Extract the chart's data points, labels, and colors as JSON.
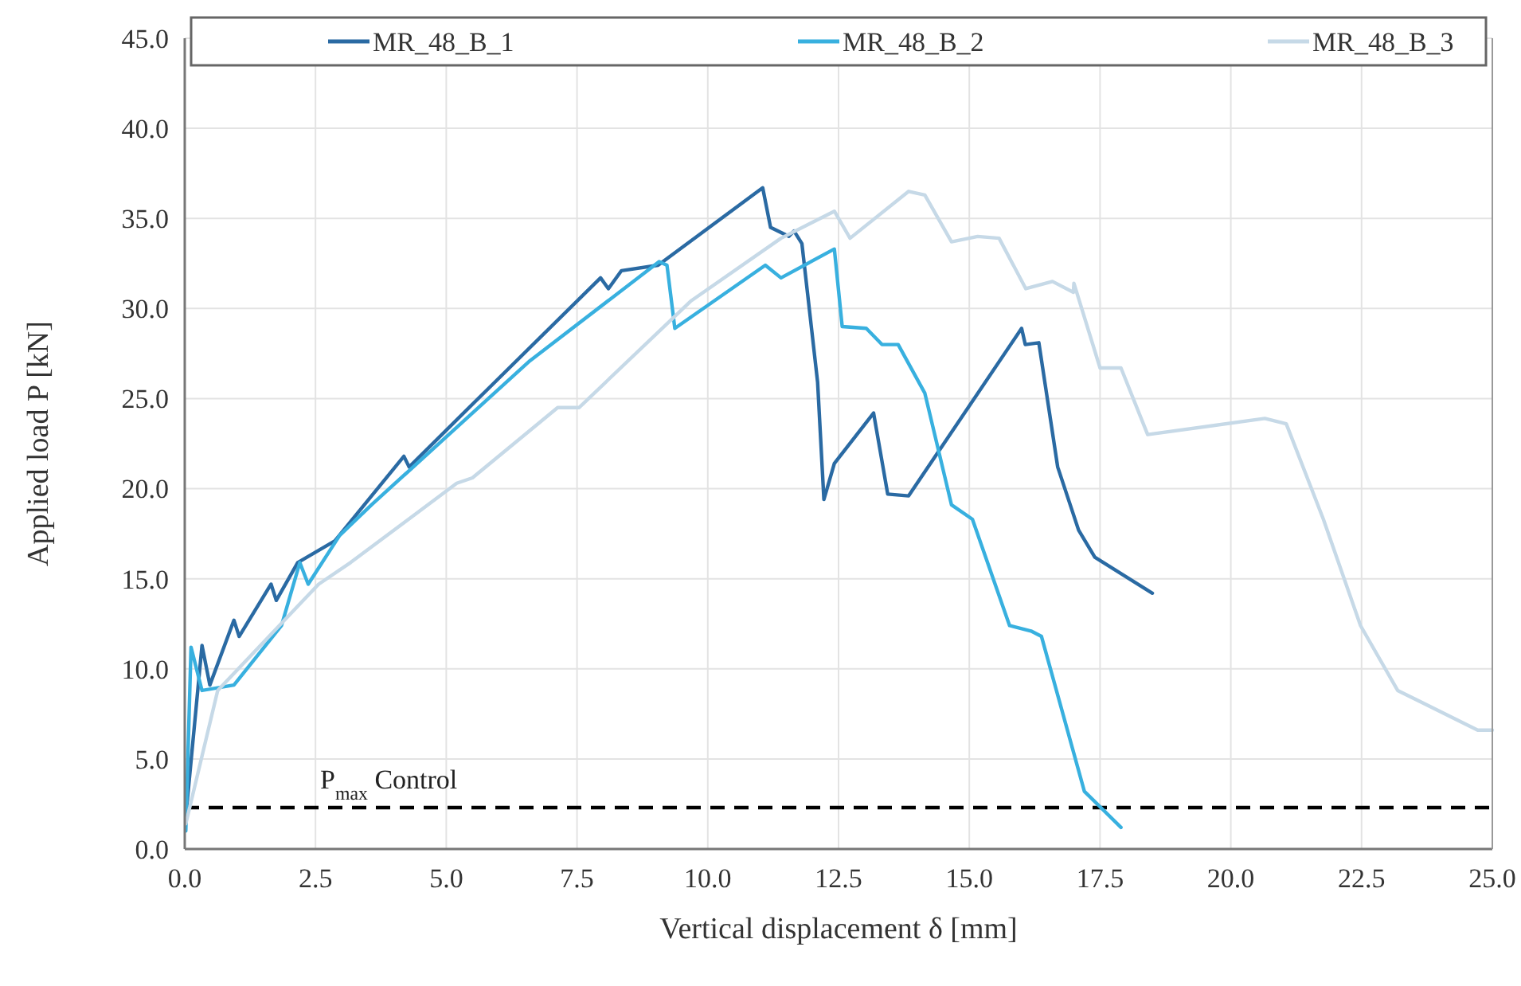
{
  "chart_data": {
    "type": "line",
    "xlabel": "Vertical displacement δ [mm]",
    "ylabel": "Applied load P [kN]",
    "xlim": [
      0,
      25
    ],
    "xticks": [
      {
        "value": 0,
        "label": "0.0"
      },
      {
        "value": 2.5,
        "label": "2.5"
      },
      {
        "value": 5,
        "label": "5.0"
      },
      {
        "value": 7.5,
        "label": "7.5"
      },
      {
        "value": 10,
        "label": "10.0"
      },
      {
        "value": 12.5,
        "label": "12.5"
      },
      {
        "value": 15,
        "label": "15.0"
      },
      {
        "value": 17.5,
        "label": "17.5"
      },
      {
        "value": 20,
        "label": "20.0"
      },
      {
        "value": 22.5,
        "label": "22.5"
      },
      {
        "value": 25,
        "label": "25.0"
      }
    ],
    "ylim": [
      0,
      45
    ],
    "yticks": [
      {
        "value": 0,
        "label": "0.0"
      },
      {
        "value": 5,
        "label": "5.0"
      },
      {
        "value": 10,
        "label": "10.0"
      },
      {
        "value": 15,
        "label": "15.0"
      },
      {
        "value": 20,
        "label": "20.0"
      },
      {
        "value": 25,
        "label": "25.0"
      },
      {
        "value": 30,
        "label": "30.0"
      },
      {
        "value": 35,
        "label": "35.0"
      },
      {
        "value": 40,
        "label": "40.0"
      },
      {
        "value": 45,
        "label": "45.0"
      }
    ],
    "grid": true,
    "legend": "top",
    "marker": "none",
    "line_style": "solid",
    "ref_lines": [
      {
        "axis": "y",
        "value": 2.3,
        "label": "P$_{max}$ Control",
        "color": "#000000",
        "line_style": "dashed"
      }
    ],
    "series": [
      {
        "name": "MR_48_B_1",
        "color": "#2a6aa3",
        "x": [
          0.02,
          0.33,
          0.48,
          0.94,
          1.04,
          1.65,
          1.75,
          2.16,
          2.87,
          4.19,
          4.29,
          5.61,
          7.95,
          8.1,
          8.35,
          9.05,
          11.05,
          11.2,
          11.55,
          11.65,
          11.8,
          12.1,
          12.22,
          12.42,
          13.17,
          13.44,
          13.84,
          16.0,
          16.07,
          16.33,
          16.69,
          17.09,
          17.4,
          18.5
        ],
        "values": [
          1.8,
          11.3,
          9.1,
          12.7,
          11.8,
          14.7,
          13.8,
          15.9,
          17.1,
          21.8,
          21.2,
          25.0,
          31.7,
          31.1,
          32.1,
          32.4,
          36.7,
          34.5,
          34.0,
          34.3,
          33.6,
          25.9,
          19.4,
          21.4,
          24.2,
          19.7,
          19.6,
          28.9,
          28.0,
          28.1,
          21.2,
          17.7,
          16.2,
          14.2
        ]
      },
      {
        "name": "MR_48_B_2",
        "color": "#38b0df",
        "x": [
          0.02,
          0.12,
          0.33,
          0.94,
          1.85,
          2.2,
          2.36,
          2.96,
          3.57,
          6.6,
          9.07,
          9.22,
          9.37,
          11.1,
          11.4,
          12.42,
          12.57,
          13.03,
          13.33,
          13.64,
          14.15,
          14.66,
          15.06,
          15.77,
          16.18,
          16.38,
          17.2,
          17.9
        ],
        "values": [
          1.0,
          11.2,
          8.8,
          9.1,
          12.4,
          15.9,
          14.7,
          17.4,
          19.1,
          27.1,
          32.6,
          32.4,
          28.9,
          32.4,
          31.7,
          33.3,
          29.0,
          28.9,
          28.0,
          28.0,
          25.3,
          19.1,
          18.3,
          12.4,
          12.1,
          11.8,
          3.2,
          1.2
        ]
      },
      {
        "name": "MR_48_B_3",
        "color": "#c6d9e7",
        "x": [
          0.02,
          0.63,
          2.56,
          3.17,
          5.2,
          5.5,
          7.13,
          7.54,
          9.67,
          11.4,
          12.42,
          12.72,
          13.84,
          14.15,
          14.66,
          15.16,
          15.57,
          16.08,
          16.59,
          16.99,
          17.0,
          17.5,
          17.9,
          18.41,
          20.65,
          21.06,
          21.77,
          22.48,
          23.19,
          24.72,
          25.0
        ],
        "values": [
          1.4,
          8.8,
          14.7,
          15.9,
          20.3,
          20.6,
          24.5,
          24.5,
          30.4,
          33.9,
          35.4,
          33.9,
          36.5,
          36.3,
          33.7,
          34.0,
          33.9,
          31.1,
          31.5,
          30.9,
          31.4,
          26.7,
          26.7,
          23.0,
          23.9,
          23.6,
          18.3,
          12.4,
          8.8,
          6.6,
          6.6
        ]
      }
    ]
  }
}
